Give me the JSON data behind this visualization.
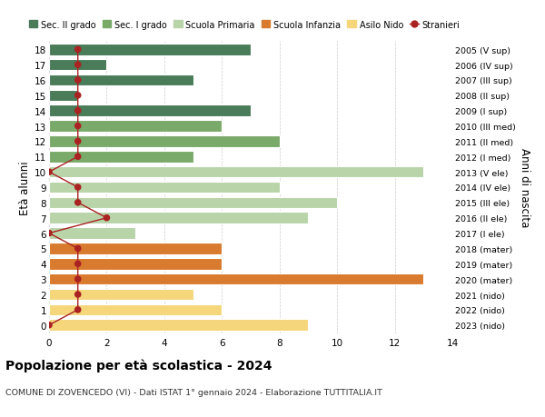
{
  "ages": [
    18,
    17,
    16,
    15,
    14,
    13,
    12,
    11,
    10,
    9,
    8,
    7,
    6,
    5,
    4,
    3,
    2,
    1,
    0
  ],
  "years": [
    "2005 (V sup)",
    "2006 (IV sup)",
    "2007 (III sup)",
    "2008 (II sup)",
    "2009 (I sup)",
    "2010 (III med)",
    "2011 (II med)",
    "2012 (I med)",
    "2013 (V ele)",
    "2014 (IV ele)",
    "2015 (III ele)",
    "2016 (II ele)",
    "2017 (I ele)",
    "2018 (mater)",
    "2019 (mater)",
    "2020 (mater)",
    "2021 (nido)",
    "2022 (nido)",
    "2023 (nido)"
  ],
  "bar_values": [
    7,
    2,
    5,
    1,
    7,
    6,
    8,
    5,
    13,
    8,
    10,
    9,
    3,
    6,
    6,
    13,
    5,
    6,
    9
  ],
  "bar_colors": [
    "#4a7c59",
    "#4a7c59",
    "#4a7c59",
    "#4a7c59",
    "#4a7c59",
    "#7aaa6a",
    "#7aaa6a",
    "#7aaa6a",
    "#b8d4a8",
    "#b8d4a8",
    "#b8d4a8",
    "#b8d4a8",
    "#b8d4a8",
    "#d97b2e",
    "#d97b2e",
    "#d97b2e",
    "#f5d67a",
    "#f5d67a",
    "#f5d67a"
  ],
  "stranieri_x": [
    1,
    1,
    1,
    1,
    1,
    1,
    1,
    1,
    0,
    1,
    1,
    2,
    0,
    1,
    1,
    1,
    1,
    1,
    0
  ],
  "color_sec2": "#4a7c59",
  "color_sec1": "#7aaa6a",
  "color_primaria": "#b8d4a8",
  "color_infanzia": "#d97b2e",
  "color_nido": "#f5d67a",
  "color_stranieri": "#aa2222",
  "title": "Popolazione per età scolastica - 2024",
  "subtitle": "COMUNE DI ZOVENCEDO (VI) - Dati ISTAT 1° gennaio 2024 - Elaborazione TUTTITALIA.IT",
  "ylabel": "Età alunni",
  "ylabel_right": "Anni di nascita",
  "xlim": [
    0,
    14
  ],
  "xticks": [
    0,
    2,
    4,
    6,
    8,
    10,
    12,
    14
  ],
  "bar_height": 0.75,
  "legend_labels": [
    "Sec. II grado",
    "Sec. I grado",
    "Scuola Primaria",
    "Scuola Infanzia",
    "Asilo Nido",
    "Stranieri"
  ]
}
